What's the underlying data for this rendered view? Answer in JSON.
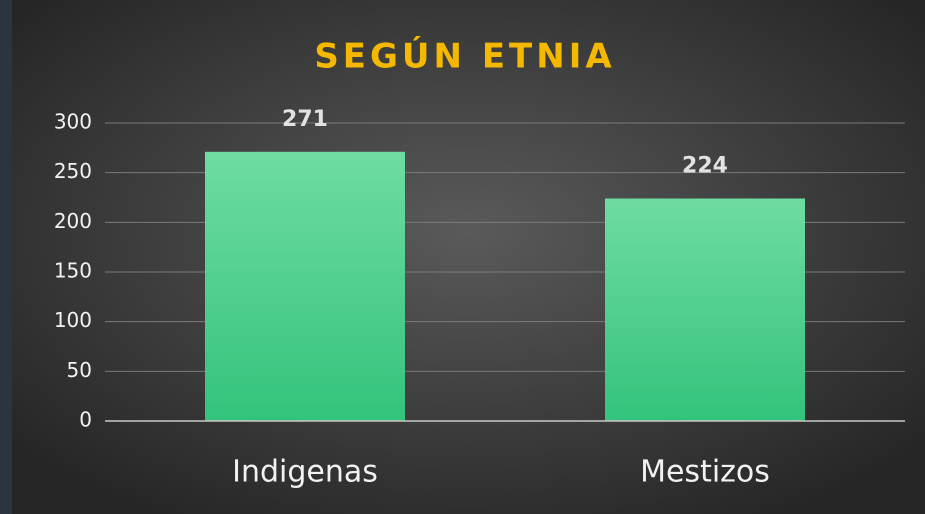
{
  "chart_data": {
    "type": "bar",
    "title": "SEGÚN ETNIA",
    "categories": [
      "Indigenas",
      "Mestizos"
    ],
    "values": [
      271,
      224
    ],
    "color": "#4fd08f",
    "ylim": [
      0,
      300
    ],
    "yticks": [
      0,
      50,
      100,
      150,
      200,
      250,
      300
    ],
    "grid": true
  }
}
